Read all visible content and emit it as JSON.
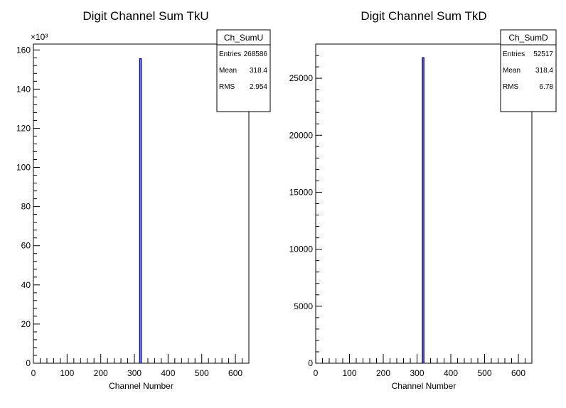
{
  "chart_data": [
    {
      "type": "histogram",
      "title": "Digit Channel Sum TkU",
      "xlabel": "Channel Number",
      "ylabel": "",
      "xlim": [
        0,
        640
      ],
      "ylim": [
        0,
        163
      ],
      "y_multiplier": "×10³",
      "x_ticks": [
        "0",
        "100",
        "200",
        "300",
        "400",
        "500",
        "600"
      ],
      "y_ticks": [
        "0",
        "20",
        "40",
        "60",
        "80",
        "100",
        "120",
        "140",
        "160"
      ],
      "bins": [
        {
          "x": 318,
          "y": 155.5
        }
      ],
      "line_color": "#000080",
      "stats": {
        "name": "Ch_SumU",
        "rows": [
          {
            "label": "Entries",
            "value": "268586"
          },
          {
            "label": "Mean",
            "value": "318.4"
          },
          {
            "label": "RMS",
            "value": "2.954"
          }
        ]
      }
    },
    {
      "type": "histogram",
      "title": "Digit Channel Sum TkD",
      "xlabel": "Channel Number",
      "ylabel": "",
      "xlim": [
        0,
        640
      ],
      "ylim": [
        0,
        28000
      ],
      "y_multiplier": "",
      "x_ticks": [
        "0",
        "100",
        "200",
        "300",
        "400",
        "500",
        "600"
      ],
      "y_ticks": [
        "0",
        "5000",
        "10000",
        "15000",
        "20000",
        "25000"
      ],
      "bins": [
        {
          "x": 318,
          "y": 26800
        }
      ],
      "line_color": "#000080",
      "stats": {
        "name": "Ch_SumD",
        "rows": [
          {
            "label": "Entries",
            "value": "52517"
          },
          {
            "label": "Mean",
            "value": "318.4"
          },
          {
            "label": "RMS",
            "value": "6.78"
          }
        ]
      }
    }
  ]
}
